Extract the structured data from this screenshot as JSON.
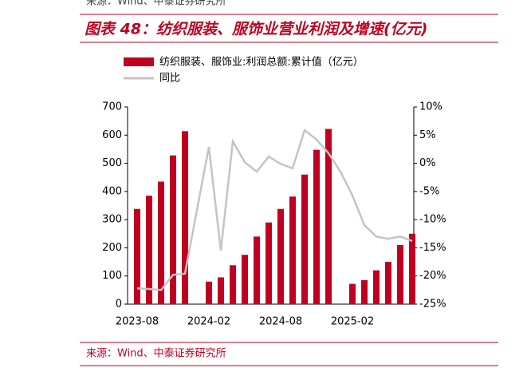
{
  "header": {
    "source_top": "来源：Wind、中泰证券研究所",
    "title": "图表 48：纺织服装、服饰业营业利润及增速(亿元)"
  },
  "chart_data": {
    "type": "bar-line",
    "categories": [
      "2023-08",
      null,
      null,
      null,
      null,
      null,
      "2024-02",
      null,
      null,
      null,
      null,
      null,
      "2024-08",
      null,
      null,
      null,
      null,
      null,
      "2025-02",
      null,
      null,
      null,
      null,
      null
    ],
    "series": [
      {
        "name": "纺织服装、服饰业:利润总额:累计值（亿元）",
        "type": "bar",
        "color": "#c00021",
        "values": [
          338,
          385,
          435,
          528,
          614,
          null,
          80,
          95,
          138,
          175,
          240,
          290,
          338,
          382,
          460,
          548,
          622,
          null,
          72,
          85,
          120,
          150,
          210,
          250
        ]
      },
      {
        "name": "同比",
        "type": "line",
        "axis": "y2",
        "color": "#c4c4c4",
        "values": [
          -22.2,
          -22.3,
          -22.5,
          -19.8,
          -19.6,
          -8.3,
          2.9,
          -15.5,
          3.9,
          0.2,
          -1.5,
          1.2,
          -0.1,
          -0.9,
          5.9,
          4.2,
          1.8,
          -1.5,
          -5.7,
          -11,
          -13,
          -13.4,
          -13,
          -13.8
        ]
      }
    ],
    "ylim": [
      0,
      700
    ],
    "yticks": [
      0,
      100,
      200,
      300,
      400,
      500,
      600,
      700
    ],
    "y2lim": [
      -25,
      10
    ],
    "y2ticks": [
      {
        "value": -25,
        "label": "-25%"
      },
      {
        "value": -20,
        "label": "-20%"
      },
      {
        "value": -15,
        "label": "-15%"
      },
      {
        "value": -10,
        "label": "-10%"
      },
      {
        "value": -5,
        "label": "-5%"
      },
      {
        "value": 0,
        "label": "0%"
      },
      {
        "value": 5,
        "label": "5%"
      },
      {
        "value": 10,
        "label": "10%"
      }
    ]
  },
  "footer": {
    "source": "来源：Wind、中泰证券研究所"
  }
}
